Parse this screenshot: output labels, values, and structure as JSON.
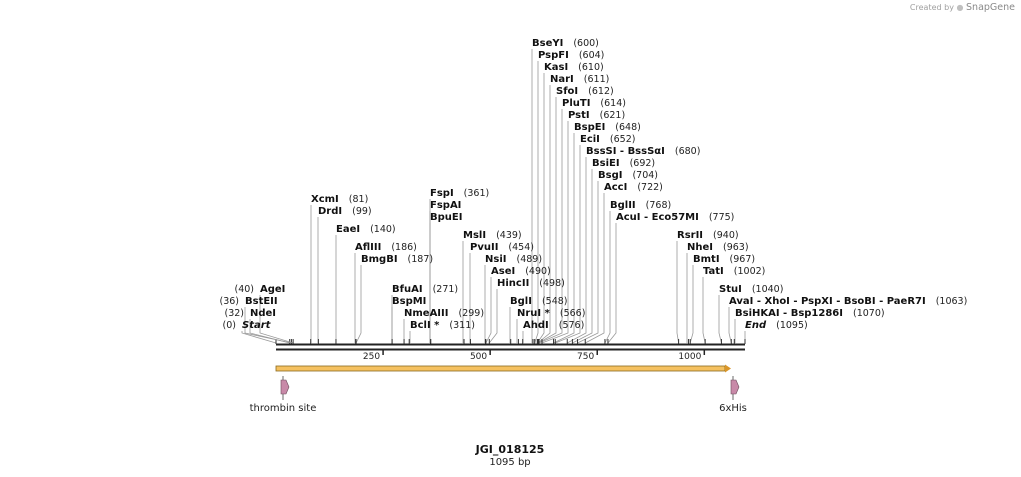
{
  "credit": {
    "prefix": "Created by",
    "brand": "SnapGene"
  },
  "sequence": {
    "name": "JGI_018125",
    "length_label": "1095 bp",
    "length": 1095
  },
  "ruler_ticks": [
    {
      "value": 250,
      "label": "250"
    },
    {
      "value": 500,
      "label": "500"
    },
    {
      "value": 750,
      "label": "750"
    },
    {
      "value": 1000,
      "label": "1000"
    }
  ],
  "features": [
    {
      "name": "thrombin site",
      "position": 10,
      "color": "#c889a8"
    },
    {
      "name": "6xHis",
      "position": 1095,
      "color": "#c889a8"
    }
  ],
  "orf": {
    "start": 0,
    "end": 1095,
    "color": "#f5c160"
  },
  "enzymes": [
    {
      "name": "Start",
      "pos_label": "(0)",
      "pos": 0,
      "italic": true
    },
    {
      "name": "NdeI",
      "pos_label": "(32)",
      "pos": 32
    },
    {
      "name": "BstEII",
      "pos_label": "(36)",
      "pos": 36
    },
    {
      "name": "AgeI",
      "pos_label": "(40)",
      "pos": 40
    },
    {
      "name": "XcmI",
      "pos_label": "(81)",
      "pos": 81
    },
    {
      "name": "DrdI",
      "pos_label": "(99)",
      "pos": 99
    },
    {
      "name": "EaeI",
      "pos_label": "(140)",
      "pos": 140
    },
    {
      "name": "AflIII",
      "pos_label": "(186)",
      "pos": 186
    },
    {
      "name": "BmgBI",
      "pos_label": "(187)",
      "pos": 187
    },
    {
      "name": "BfuAI",
      "pos_label": "(271)",
      "pos": 271
    },
    {
      "name": "BspMI",
      "pos_label": "",
      "pos": 271
    },
    {
      "name": "NmeAIII",
      "pos_label": "(299)",
      "pos": 299
    },
    {
      "name": "BclI *",
      "pos_label": "(311)",
      "pos": 311
    },
    {
      "name": "FspI",
      "pos_label": "(361)",
      "pos": 361
    },
    {
      "name": "FspAI",
      "pos_label": "",
      "pos": 361
    },
    {
      "name": "BpuEI",
      "pos_label": "",
      "pos": 361
    },
    {
      "name": "MslI",
      "pos_label": "(439)",
      "pos": 439
    },
    {
      "name": "PvuII",
      "pos_label": "(454)",
      "pos": 454
    },
    {
      "name": "NsiI",
      "pos_label": "(489)",
      "pos": 489
    },
    {
      "name": "AseI",
      "pos_label": "(490)",
      "pos": 490
    },
    {
      "name": "HincII",
      "pos_label": "(498)",
      "pos": 498
    },
    {
      "name": "BglI",
      "pos_label": "(548)",
      "pos": 548
    },
    {
      "name": "NruI *",
      "pos_label": "(566)",
      "pos": 566
    },
    {
      "name": "AhdI",
      "pos_label": "(576)",
      "pos": 576
    },
    {
      "name": "BseYI",
      "pos_label": "(600)",
      "pos": 600
    },
    {
      "name": "PspFI",
      "pos_label": "(604)",
      "pos": 604
    },
    {
      "name": "KasI",
      "pos_label": "(610)",
      "pos": 610
    },
    {
      "name": "NarI",
      "pos_label": "(611)",
      "pos": 611
    },
    {
      "name": "SfoI",
      "pos_label": "(612)",
      "pos": 612
    },
    {
      "name": "PluTI",
      "pos_label": "(614)",
      "pos": 614
    },
    {
      "name": "PstI",
      "pos_label": "(621)",
      "pos": 621
    },
    {
      "name": "BspEI",
      "pos_label": "(648)",
      "pos": 648
    },
    {
      "name": "EciI",
      "pos_label": "(652)",
      "pos": 652
    },
    {
      "name": "BssSI  - BssSαI",
      "pos_label": "(680)",
      "pos": 680
    },
    {
      "name": "BsiEI",
      "pos_label": "(692)",
      "pos": 692
    },
    {
      "name": "BsgI",
      "pos_label": "(704)",
      "pos": 704
    },
    {
      "name": "AccI",
      "pos_label": "(722)",
      "pos": 722
    },
    {
      "name": "BglII",
      "pos_label": "(768)",
      "pos": 768
    },
    {
      "name": "AcuI  - Eco57MI",
      "pos_label": "(775)",
      "pos": 775
    },
    {
      "name": "RsrII",
      "pos_label": "(940)",
      "pos": 940
    },
    {
      "name": "NheI",
      "pos_label": "(963)",
      "pos": 963
    },
    {
      "name": "BmtI",
      "pos_label": "(967)",
      "pos": 967
    },
    {
      "name": "TatI",
      "pos_label": "(1002)",
      "pos": 1002
    },
    {
      "name": "StuI",
      "pos_label": "(1040)",
      "pos": 1040
    },
    {
      "name": "AvaI  - XhoI  - PspXI  - BsoBI  - PaeR7I",
      "pos_label": "(1063)",
      "pos": 1063
    },
    {
      "name": "BsiHKAI  - Bsp1286I",
      "pos_label": "(1070)",
      "pos": 1070
    },
    {
      "name": "End",
      "pos_label": "(1095)",
      "pos": 1095,
      "italic": true
    }
  ]
}
